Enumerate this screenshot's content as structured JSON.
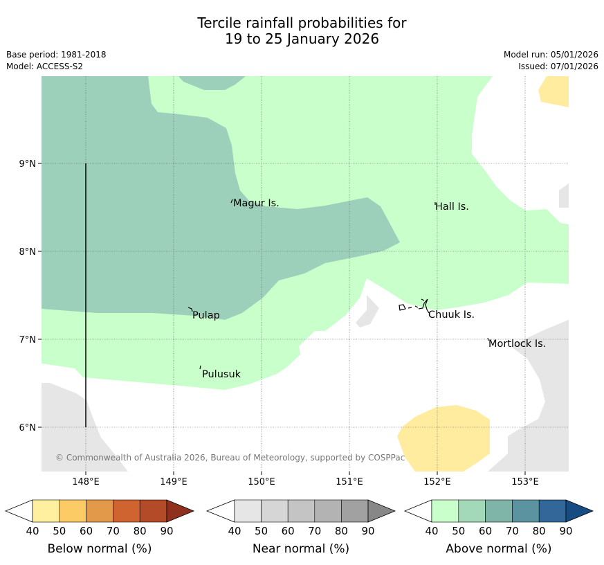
{
  "title_line1": "Tercile rainfall probabilities for",
  "title_line2": "19 to 25 January 2026",
  "meta": {
    "base_period": "Base period: 1981-2018",
    "model": "Model: ACCESS-S2",
    "model_run": "Model run: 05/01/2026",
    "issued": "Issued: 07/01/2026"
  },
  "axes": {
    "lat_labels": [
      "9°N",
      "8°N",
      "7°N",
      "6°N"
    ],
    "lon_labels": [
      "148°E",
      "149°E",
      "150°E",
      "151°E",
      "152°E",
      "153°E"
    ]
  },
  "places": [
    {
      "name": "Magur Is."
    },
    {
      "name": "Hall Is."
    },
    {
      "name": "Pulap"
    },
    {
      "name": "Chuuk Is."
    },
    {
      "name": "Mortlock Is."
    },
    {
      "name": "Pulusuk"
    }
  ],
  "copyright": "© Commonwealth of Australia 2026, Bureau of Meteorology, supported by COSPPac",
  "colorbars": [
    {
      "label": "Below normal (%)",
      "ticks": [
        "40",
        "50",
        "60",
        "70",
        "80",
        "90"
      ],
      "colors": [
        "#fff09f",
        "#fdcb66",
        "#e3994a",
        "#cf6431",
        "#b34a28",
        "#8f2f1d"
      ]
    },
    {
      "label": "Near normal (%)",
      "ticks": [
        "40",
        "50",
        "60",
        "70",
        "80",
        "90"
      ],
      "colors": [
        "#e6e6e6",
        "#d6d6d6",
        "#c4c4c4",
        "#b3b3b3",
        "#a1a1a1",
        "#878787"
      ]
    },
    {
      "label": "Above normal (%)",
      "ticks": [
        "40",
        "50",
        "60",
        "70",
        "80",
        "90"
      ],
      "colors": [
        "#c8ffcb",
        "#a3d8b9",
        "#7fb5a9",
        "#5b94a0",
        "#336699",
        "#174c82"
      ]
    }
  ],
  "colors": {
    "above_40": "#c8ffcb",
    "above_50": "#9dd0ba",
    "near_40": "#e6e6e6",
    "below_40": "#ffec9f"
  }
}
